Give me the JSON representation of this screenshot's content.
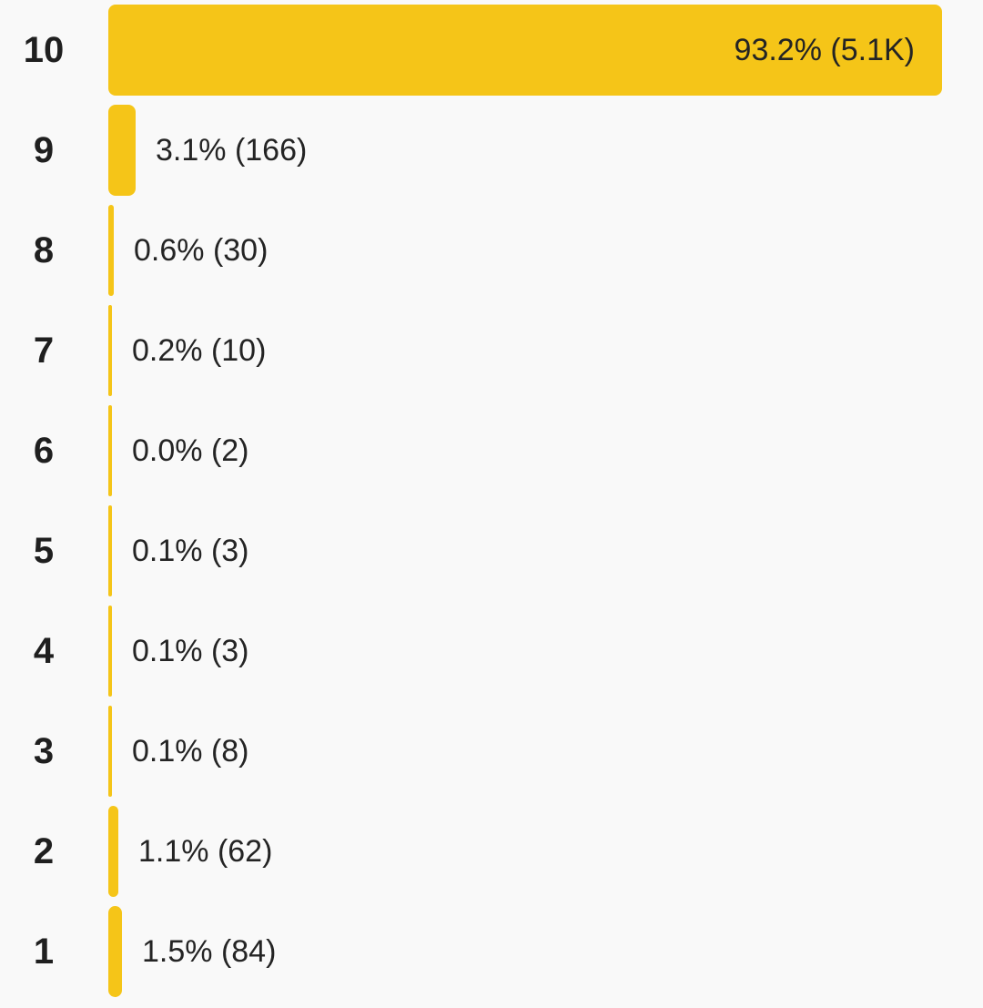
{
  "chart_data": {
    "type": "bar",
    "orientation": "horizontal",
    "bar_color": "#f5c518",
    "categories": [
      "10",
      "9",
      "8",
      "7",
      "6",
      "5",
      "4",
      "3",
      "2",
      "1"
    ],
    "values": [
      93.2,
      3.1,
      0.6,
      0.2,
      0.0,
      0.1,
      0.1,
      0.1,
      1.1,
      1.5
    ],
    "labels": [
      "93.2% (5.1K)",
      "3.1% (166)",
      "0.6% (30)",
      "0.2% (10)",
      "0.0% (2)",
      "0.1% (3)",
      "0.1% (3)",
      "0.1% (8)",
      "1.1% (62)",
      "1.5% (84)"
    ],
    "title": "",
    "xlabel": "",
    "ylabel": ""
  }
}
